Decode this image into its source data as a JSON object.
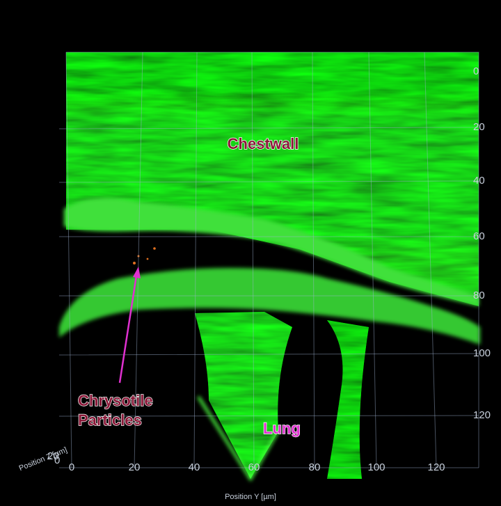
{
  "annotations": {
    "chestwall": "Chestwall",
    "particles": [
      "Chrysotile",
      "Particles"
    ],
    "lung": "Lung"
  },
  "axes": {
    "y_label": "Position Y [µm]",
    "z_label": "Position Z [µm]",
    "y_ticks": [
      0,
      20,
      40,
      60,
      80,
      100,
      120
    ],
    "z_ticks": [
      20,
      0
    ],
    "x_ticks": [
      0,
      20,
      40,
      60,
      80,
      100,
      120
    ]
  }
}
